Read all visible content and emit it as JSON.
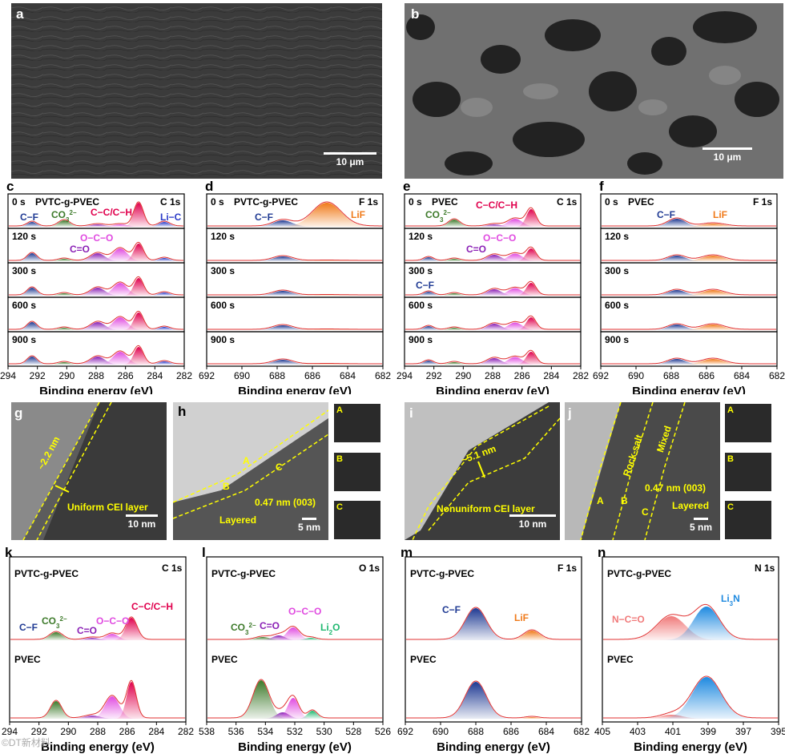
{
  "panels": {
    "a": {
      "letter": "a",
      "scale": "10 μm"
    },
    "b": {
      "letter": "b",
      "scale": "10 μm"
    },
    "c": {
      "letter": "c",
      "sample": "PVTC-g-PVEC",
      "core": "C 1s",
      "times": [
        "0 s",
        "120 s",
        "300 s",
        "600 s",
        "900 s"
      ],
      "labels": {
        "cf": "C−F",
        "co3": "CO",
        "co3sub": "3",
        "co3sup": "2−",
        "cc": "C−C/C−H",
        "lic": "Li−C",
        "oco": "O−C−O",
        "c_o": "C=O"
      },
      "ticks": [
        "294",
        "292",
        "290",
        "288",
        "286",
        "284",
        "282"
      ],
      "xlabel": "Binding energy (eV)"
    },
    "d": {
      "letter": "d",
      "sample": "PVTC-g-PVEC",
      "core": "F 1s",
      "times": [
        "0 s",
        "120 s",
        "300 s",
        "600 s",
        "900 s"
      ],
      "labels": {
        "cf": "C−F",
        "lif": "LiF"
      },
      "ticks": [
        "692",
        "690",
        "688",
        "686",
        "684",
        "682"
      ],
      "xlabel": "Binding energy (eV)"
    },
    "e": {
      "letter": "e",
      "sample": "PVEC",
      "core": "C 1s",
      "times": [
        "0 s",
        "120 s",
        "300 s",
        "600 s",
        "900 s"
      ],
      "labels": {
        "co3": "CO",
        "co3sub": "3",
        "co3sup": "2−",
        "cc": "C−C/C−H",
        "oco": "O−C−O",
        "c_o": "C=O",
        "cf": "C−F"
      },
      "ticks": [
        "294",
        "292",
        "290",
        "288",
        "286",
        "284",
        "282"
      ],
      "xlabel": "Binding energy (eV)"
    },
    "f": {
      "letter": "f",
      "sample": "PVEC",
      "core": "F 1s",
      "times": [
        "0 s",
        "120 s",
        "300 s",
        "600 s",
        "900 s"
      ],
      "labels": {
        "cf": "C−F",
        "lif": "LiF"
      },
      "ticks": [
        "692",
        "690",
        "688",
        "686",
        "684",
        "682"
      ],
      "xlabel": "Binding energy (eV)"
    },
    "g": {
      "letter": "g",
      "thickness": "~2.2 nm",
      "layer": "Uniform CEI layer",
      "scale": "10 nm"
    },
    "h": {
      "letter": "h",
      "regA": "A",
      "regB": "B",
      "regC": "C",
      "dspace": "0.47 nm (003)",
      "layered": "Layered",
      "scale": "5 nm",
      "ffts": [
        "A",
        "B",
        "C"
      ]
    },
    "i": {
      "letter": "i",
      "thickness": "~5.1 nm",
      "layer": "Nonuniform CEI layer",
      "scale": "10 nm"
    },
    "j": {
      "letter": "j",
      "rock": "Rock-salt",
      "mixed": "Mixed",
      "dspace": "0.47 nm (003)",
      "layered": "Layered",
      "regA": "A",
      "regB": "B",
      "regC": "C",
      "scale": "5 nm",
      "ffts": [
        "A",
        "B",
        "C"
      ]
    },
    "k": {
      "letter": "k",
      "top": "PVTC-g-PVEC",
      "bottom": "PVEC",
      "core": "C 1s",
      "labels": {
        "cf": "C−F",
        "co3": "CO",
        "co3sub": "3",
        "co3sup": "2−",
        "c_o": "C=O",
        "oco": "O−C−O",
        "cc": "C−C/C−H"
      },
      "ticks": [
        "294",
        "292",
        "290",
        "288",
        "286",
        "284",
        "282"
      ],
      "xlabel": "Binding energy (eV)"
    },
    "l": {
      "letter": "l",
      "top": "PVTC-g-PVEC",
      "bottom": "PVEC",
      "core": "O 1s",
      "labels": {
        "co3": "CO",
        "co3sub": "3",
        "co3sup": "2−",
        "c_o": "C=O",
        "oco": "O−C−O",
        "li2o": "Li",
        "li2osub": "2",
        "li2oend": "O"
      },
      "ticks": [
        "538",
        "536",
        "534",
        "532",
        "530",
        "528",
        "526"
      ],
      "xlabel": "Binding energy (eV)"
    },
    "m": {
      "letter": "m",
      "top": "PVTC-g-PVEC",
      "bottom": "PVEC",
      "core": "F 1s",
      "labels": {
        "cf": "C−F",
        "lif": "LiF"
      },
      "ticks": [
        "692",
        "690",
        "688",
        "686",
        "684",
        "682"
      ],
      "xlabel": "Binding energy (eV)"
    },
    "n": {
      "letter": "n",
      "top": "PVTC-g-PVEC",
      "bottom": "PVEC",
      "core": "N 1s",
      "labels": {
        "nco": "N−C=O",
        "li3n": "Li",
        "li3nsub": "3",
        "li3nend": "N"
      },
      "ticks": [
        "405",
        "403",
        "401",
        "399",
        "397",
        "395"
      ],
      "xlabel": "Binding energy (eV)"
    }
  },
  "colors": {
    "cf": "#1f3a93",
    "co3": "#3d7a2a",
    "cc": "#e0004d",
    "lic": "#2a3ac8",
    "oco": "#e04ae0",
    "c_o": "#8a1fb5",
    "lif": "#f07a1a",
    "li2o": "#1fb870",
    "nco": "#f07a7a",
    "li3n": "#1f8ae0",
    "envelope": "#e03030",
    "label": "#ffff00"
  },
  "watermark": "©DT新材料"
}
